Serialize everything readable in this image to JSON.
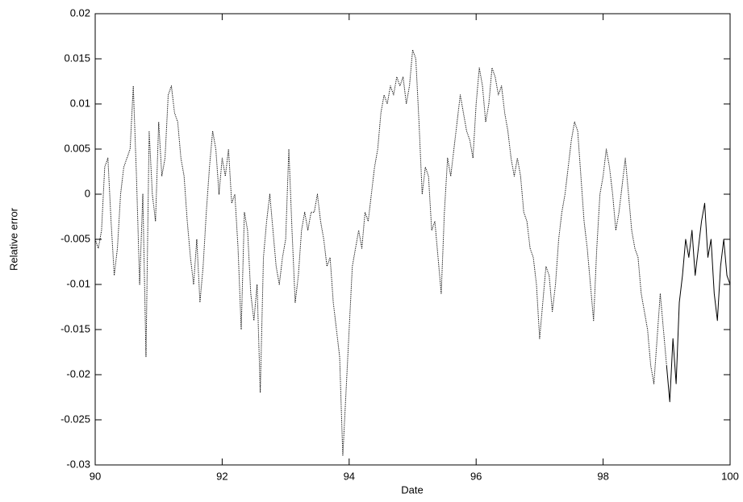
{
  "chart_data": {
    "type": "line",
    "xlabel": "Date",
    "ylabel": "Relative error",
    "xlim": [
      90,
      100
    ],
    "xticks": [
      90,
      92,
      94,
      96,
      98,
      100
    ],
    "ylim": [
      -0.03,
      0.02
    ],
    "yticks": [
      -0.03,
      -0.025,
      -0.02,
      -0.015,
      -0.01,
      -0.005,
      0,
      0.005,
      0.01,
      0.015,
      0.02
    ],
    "grid": false,
    "series": [
      {
        "color": "#000000",
        "style": "dotted",
        "x": [
          90.0,
          90.05,
          90.1,
          90.15,
          90.2,
          90.25,
          90.3,
          90.35,
          90.4,
          90.45,
          90.5,
          90.55,
          90.6,
          90.65,
          90.7,
          90.75,
          90.8,
          90.85,
          90.9,
          90.95,
          91.0,
          91.05,
          91.1,
          91.15,
          91.2,
          91.25,
          91.3,
          91.35,
          91.4,
          91.45,
          91.5,
          91.55,
          91.6,
          91.65,
          91.7,
          91.75,
          91.8,
          91.85,
          91.9,
          91.95,
          92.0,
          92.05,
          92.1,
          92.15,
          92.2,
          92.25,
          92.3,
          92.35,
          92.4,
          92.45,
          92.5,
          92.55,
          92.6,
          92.65,
          92.7,
          92.75,
          92.8,
          92.85,
          92.9,
          92.95,
          93.0,
          93.05,
          93.1,
          93.15,
          93.2,
          93.25,
          93.3,
          93.35,
          93.4,
          93.45,
          93.5,
          93.55,
          93.6,
          93.65,
          93.7,
          93.75,
          93.8,
          93.85,
          93.9,
          93.95,
          94.0,
          94.05,
          94.1,
          94.15,
          94.2,
          94.25,
          94.3,
          94.35,
          94.4,
          94.45,
          94.5,
          94.55,
          94.6,
          94.65,
          94.7,
          94.75,
          94.8,
          94.85,
          94.9,
          94.95,
          95.0,
          95.05,
          95.1,
          95.15,
          95.2,
          95.25,
          95.3,
          95.35,
          95.4,
          95.45,
          95.5,
          95.55,
          95.6,
          95.65,
          95.7,
          95.75,
          95.8,
          95.85,
          95.9,
          95.95,
          96.0,
          96.05,
          96.1,
          96.15,
          96.2,
          96.25,
          96.3,
          96.35,
          96.4,
          96.45,
          96.5,
          96.55,
          96.6,
          96.65,
          96.7,
          96.75,
          96.8,
          96.85,
          96.9,
          96.95,
          97.0,
          97.05,
          97.1,
          97.15,
          97.2,
          97.25,
          97.3,
          97.35,
          97.4,
          97.45,
          97.5,
          97.55,
          97.6,
          97.65,
          97.7,
          97.75,
          97.8,
          97.85,
          97.9,
          97.95,
          98.0,
          98.05,
          98.1,
          98.15,
          98.2,
          98.25,
          98.3,
          98.35,
          98.4,
          98.45,
          98.5,
          98.55,
          98.6,
          98.65,
          98.7,
          98.75,
          98.8,
          98.85,
          98.9,
          98.95,
          99.0
        ],
        "values": [
          -0.005,
          -0.006,
          -0.004,
          0.003,
          0.004,
          -0.003,
          -0.009,
          -0.006,
          0.0,
          0.003,
          0.004,
          0.005,
          0.012,
          0.002,
          -0.01,
          0.0,
          -0.018,
          0.007,
          0.0,
          -0.003,
          0.008,
          0.002,
          0.004,
          0.011,
          0.012,
          0.009,
          0.008,
          0.004,
          0.002,
          -0.003,
          -0.007,
          -0.01,
          -0.005,
          -0.012,
          -0.008,
          -0.002,
          0.003,
          0.007,
          0.005,
          0.0,
          0.004,
          0.002,
          0.005,
          -0.001,
          0.0,
          -0.006,
          -0.015,
          -0.002,
          -0.004,
          -0.011,
          -0.014,
          -0.01,
          -0.022,
          -0.007,
          -0.003,
          0.0,
          -0.004,
          -0.008,
          -0.01,
          -0.007,
          -0.005,
          0.005,
          -0.004,
          -0.012,
          -0.009,
          -0.004,
          -0.002,
          -0.004,
          -0.002,
          -0.002,
          0.0,
          -0.003,
          -0.005,
          -0.008,
          -0.007,
          -0.012,
          -0.015,
          -0.018,
          -0.029,
          -0.022,
          -0.015,
          -0.008,
          -0.006,
          -0.004,
          -0.006,
          -0.002,
          -0.003,
          0.0,
          0.003,
          0.005,
          0.009,
          0.011,
          0.01,
          0.012,
          0.011,
          0.013,
          0.012,
          0.013,
          0.01,
          0.012,
          0.016,
          0.015,
          0.008,
          0.0,
          0.003,
          0.002,
          -0.004,
          -0.003,
          -0.007,
          -0.011,
          -0.002,
          0.004,
          0.002,
          0.005,
          0.008,
          0.011,
          0.009,
          0.007,
          0.006,
          0.004,
          0.01,
          0.014,
          0.012,
          0.008,
          0.01,
          0.014,
          0.013,
          0.011,
          0.012,
          0.009,
          0.007,
          0.004,
          0.002,
          0.004,
          0.002,
          -0.002,
          -0.003,
          -0.006,
          -0.007,
          -0.01,
          -0.016,
          -0.012,
          -0.008,
          -0.009,
          -0.013,
          -0.01,
          -0.005,
          -0.002,
          0.0,
          0.003,
          0.006,
          0.008,
          0.007,
          0.002,
          -0.003,
          -0.006,
          -0.01,
          -0.014,
          -0.006,
          0.0,
          0.002,
          0.005,
          0.003,
          0.0,
          -0.004,
          -0.002,
          0.001,
          0.004,
          0.0,
          -0.004,
          -0.006,
          -0.007,
          -0.011,
          -0.013,
          -0.015,
          -0.019,
          -0.021,
          -0.016,
          -0.011,
          -0.015,
          -0.019
        ]
      },
      {
        "color": "#000000",
        "style": "solid",
        "x": [
          99.0,
          99.05,
          99.1,
          99.15,
          99.2,
          99.25,
          99.3,
          99.35,
          99.4,
          99.45,
          99.5,
          99.55,
          99.6,
          99.65,
          99.7,
          99.75,
          99.8,
          99.85,
          99.9,
          99.95,
          100.0
        ],
        "values": [
          -0.019,
          -0.023,
          -0.016,
          -0.021,
          -0.012,
          -0.009,
          -0.005,
          -0.007,
          -0.004,
          -0.009,
          -0.006,
          -0.003,
          -0.001,
          -0.007,
          -0.005,
          -0.011,
          -0.014,
          -0.008,
          -0.005,
          -0.009,
          -0.01
        ]
      }
    ]
  }
}
